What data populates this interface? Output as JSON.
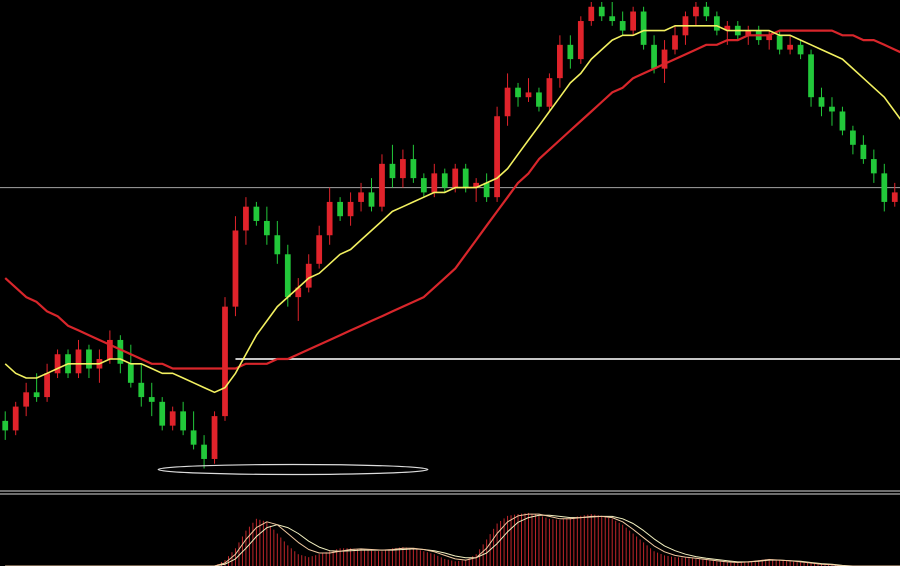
{
  "chart_data": {
    "type": "candlestick",
    "background": "#000000",
    "colors": {
      "up": "#e0232b",
      "down": "#22c83a",
      "ma_fast": "#f2f060",
      "ma_slow": "#d8262b",
      "level_line": "#dcdcdc",
      "histogram": "#c0262b",
      "osc_line_1": "#f0c8a0",
      "osc_line_2": "#f2f0c0",
      "highlight_ellipse": "#dcdcdc"
    },
    "price_range": [
      0,
      100
    ],
    "candles": [
      {
        "o": 12,
        "h": 14,
        "l": 8,
        "c": 10
      },
      {
        "o": 10,
        "h": 16,
        "l": 9,
        "c": 15
      },
      {
        "o": 15,
        "h": 20,
        "l": 13,
        "c": 18
      },
      {
        "o": 18,
        "h": 22,
        "l": 16,
        "c": 17
      },
      {
        "o": 17,
        "h": 24,
        "l": 16,
        "c": 22
      },
      {
        "o": 22,
        "h": 27,
        "l": 21,
        "c": 26
      },
      {
        "o": 26,
        "h": 27,
        "l": 21,
        "c": 22
      },
      {
        "o": 22,
        "h": 29,
        "l": 21,
        "c": 27
      },
      {
        "o": 27,
        "h": 28,
        "l": 21,
        "c": 23
      },
      {
        "o": 23,
        "h": 27,
        "l": 20,
        "c": 25
      },
      {
        "o": 25,
        "h": 31,
        "l": 24,
        "c": 29
      },
      {
        "o": 29,
        "h": 30,
        "l": 22,
        "c": 24
      },
      {
        "o": 24,
        "h": 28,
        "l": 19,
        "c": 20
      },
      {
        "o": 20,
        "h": 24,
        "l": 15,
        "c": 17
      },
      {
        "o": 17,
        "h": 20,
        "l": 13,
        "c": 16
      },
      {
        "o": 16,
        "h": 17,
        "l": 10,
        "c": 11
      },
      {
        "o": 11,
        "h": 15,
        "l": 10,
        "c": 14
      },
      {
        "o": 14,
        "h": 16,
        "l": 9,
        "c": 10
      },
      {
        "o": 10,
        "h": 14,
        "l": 6,
        "c": 7
      },
      {
        "o": 7,
        "h": 9,
        "l": 2,
        "c": 4
      },
      {
        "o": 4,
        "h": 14,
        "l": 3,
        "c": 13
      },
      {
        "o": 13,
        "h": 38,
        "l": 12,
        "c": 36
      },
      {
        "o": 36,
        "h": 55,
        "l": 34,
        "c": 52
      },
      {
        "o": 52,
        "h": 59,
        "l": 49,
        "c": 57
      },
      {
        "o": 57,
        "h": 58,
        "l": 53,
        "c": 54
      },
      {
        "o": 54,
        "h": 57,
        "l": 49,
        "c": 51
      },
      {
        "o": 51,
        "h": 54,
        "l": 45,
        "c": 47
      },
      {
        "o": 47,
        "h": 49,
        "l": 36,
        "c": 38
      },
      {
        "o": 38,
        "h": 42,
        "l": 33,
        "c": 40
      },
      {
        "o": 40,
        "h": 47,
        "l": 39,
        "c": 45
      },
      {
        "o": 45,
        "h": 53,
        "l": 44,
        "c": 51
      },
      {
        "o": 51,
        "h": 61,
        "l": 49,
        "c": 58
      },
      {
        "o": 58,
        "h": 59,
        "l": 54,
        "c": 55
      },
      {
        "o": 55,
        "h": 60,
        "l": 53,
        "c": 58
      },
      {
        "o": 58,
        "h": 62,
        "l": 56,
        "c": 60
      },
      {
        "o": 60,
        "h": 63,
        "l": 56,
        "c": 57
      },
      {
        "o": 57,
        "h": 68,
        "l": 56,
        "c": 66
      },
      {
        "o": 66,
        "h": 70,
        "l": 61,
        "c": 63
      },
      {
        "o": 63,
        "h": 69,
        "l": 61,
        "c": 67
      },
      {
        "o": 67,
        "h": 70,
        "l": 62,
        "c": 63
      },
      {
        "o": 63,
        "h": 64,
        "l": 59,
        "c": 60
      },
      {
        "o": 60,
        "h": 66,
        "l": 59,
        "c": 64
      },
      {
        "o": 64,
        "h": 65,
        "l": 60,
        "c": 61
      },
      {
        "o": 61,
        "h": 66,
        "l": 60,
        "c": 65
      },
      {
        "o": 65,
        "h": 66,
        "l": 60,
        "c": 61
      },
      {
        "o": 61,
        "h": 63,
        "l": 58,
        "c": 62
      },
      {
        "o": 62,
        "h": 64,
        "l": 58,
        "c": 59
      },
      {
        "o": 59,
        "h": 78,
        "l": 58,
        "c": 76
      },
      {
        "o": 76,
        "h": 85,
        "l": 74,
        "c": 82
      },
      {
        "o": 82,
        "h": 83,
        "l": 78,
        "c": 80
      },
      {
        "o": 80,
        "h": 84,
        "l": 79,
        "c": 81
      },
      {
        "o": 81,
        "h": 82,
        "l": 77,
        "c": 78
      },
      {
        "o": 78,
        "h": 85,
        "l": 77,
        "c": 84
      },
      {
        "o": 84,
        "h": 93,
        "l": 82,
        "c": 91
      },
      {
        "o": 91,
        "h": 93,
        "l": 86,
        "c": 88
      },
      {
        "o": 88,
        "h": 97,
        "l": 87,
        "c": 96
      },
      {
        "o": 96,
        "h": 100,
        "l": 95,
        "c": 99
      },
      {
        "o": 99,
        "h": 100,
        "l": 96,
        "c": 97
      },
      {
        "o": 97,
        "h": 100,
        "l": 95,
        "c": 96
      },
      {
        "o": 96,
        "h": 98,
        "l": 93,
        "c": 94
      },
      {
        "o": 94,
        "h": 99,
        "l": 93,
        "c": 98
      },
      {
        "o": 98,
        "h": 99,
        "l": 90,
        "c": 91
      },
      {
        "o": 91,
        "h": 93,
        "l": 85,
        "c": 86
      },
      {
        "o": 86,
        "h": 92,
        "l": 83,
        "c": 90
      },
      {
        "o": 90,
        "h": 95,
        "l": 89,
        "c": 93
      },
      {
        "o": 93,
        "h": 98,
        "l": 91,
        "c": 97
      },
      {
        "o": 97,
        "h": 100,
        "l": 95,
        "c": 99
      },
      {
        "o": 99,
        "h": 100,
        "l": 96,
        "c": 97
      },
      {
        "o": 97,
        "h": 98,
        "l": 93,
        "c": 94
      },
      {
        "o": 94,
        "h": 96,
        "l": 91,
        "c": 95
      },
      {
        "o": 95,
        "h": 96,
        "l": 92,
        "c": 93
      },
      {
        "o": 93,
        "h": 95,
        "l": 91,
        "c": 94
      },
      {
        "o": 94,
        "h": 95,
        "l": 91,
        "c": 92
      },
      {
        "o": 92,
        "h": 94,
        "l": 90,
        "c": 93
      },
      {
        "o": 93,
        "h": 94,
        "l": 89,
        "c": 90
      },
      {
        "o": 90,
        "h": 93,
        "l": 89,
        "c": 91
      },
      {
        "o": 91,
        "h": 92,
        "l": 88,
        "c": 89
      },
      {
        "o": 89,
        "h": 90,
        "l": 78,
        "c": 80
      },
      {
        "o": 80,
        "h": 82,
        "l": 76,
        "c": 78
      },
      {
        "o": 78,
        "h": 80,
        "l": 74,
        "c": 77
      },
      {
        "o": 77,
        "h": 78,
        "l": 72,
        "c": 73
      },
      {
        "o": 73,
        "h": 74,
        "l": 68,
        "c": 70
      },
      {
        "o": 70,
        "h": 72,
        "l": 66,
        "c": 67
      },
      {
        "o": 67,
        "h": 69,
        "l": 62,
        "c": 64
      },
      {
        "o": 64,
        "h": 66,
        "l": 56,
        "c": 58
      },
      {
        "o": 58,
        "h": 62,
        "l": 57,
        "c": 60
      }
    ],
    "ma_fast": [
      24,
      22,
      21,
      21,
      22,
      23,
      24,
      24,
      24,
      24,
      25,
      25,
      24,
      24,
      23,
      22,
      22,
      21,
      20,
      19,
      18,
      19,
      22,
      26,
      30,
      33,
      36,
      38,
      40,
      42,
      43,
      45,
      47,
      48,
      50,
      52,
      54,
      56,
      57,
      58,
      59,
      60,
      60,
      61,
      61,
      61,
      62,
      63,
      65,
      68,
      71,
      74,
      77,
      80,
      83,
      85,
      88,
      90,
      92,
      93,
      93,
      94,
      94,
      94,
      95,
      95,
      95,
      95,
      95,
      94,
      94,
      94,
      94,
      94,
      93,
      93,
      92,
      91,
      90,
      89,
      88,
      86,
      84,
      82,
      80,
      77,
      74
    ],
    "ma_slow": [
      42,
      40,
      38,
      37,
      35,
      34,
      32,
      31,
      30,
      29,
      28,
      27,
      26,
      25,
      24,
      24,
      23,
      23,
      23,
      23,
      23,
      23,
      23,
      24,
      24,
      24,
      25,
      25,
      26,
      27,
      28,
      29,
      30,
      31,
      32,
      33,
      34,
      35,
      36,
      37,
      38,
      40,
      42,
      44,
      47,
      50,
      53,
      56,
      59,
      62,
      64,
      67,
      69,
      71,
      73,
      75,
      77,
      79,
      81,
      82,
      84,
      85,
      86,
      87,
      88,
      89,
      90,
      91,
      91,
      92,
      92,
      93,
      93,
      93,
      94,
      94,
      94,
      94,
      94,
      94,
      93,
      93,
      92,
      92,
      91,
      90,
      89
    ],
    "levels": [
      {
        "price": 61,
        "extent": "full"
      },
      {
        "price": 25,
        "extent": "partial"
      }
    ],
    "oscillator": {
      "range": [
        0,
        100
      ],
      "histogram": [
        0,
        0,
        0,
        0,
        0,
        0,
        0,
        0,
        0,
        0,
        0,
        0,
        0,
        0,
        0,
        0,
        0,
        0,
        0,
        0,
        0,
        10,
        30,
        60,
        80,
        75,
        55,
        35,
        20,
        15,
        20,
        25,
        30,
        30,
        28,
        26,
        25,
        30,
        32,
        30,
        25,
        20,
        12,
        8,
        10,
        20,
        45,
        72,
        85,
        88,
        90,
        86,
        80,
        78,
        82,
        85,
        88,
        85,
        80,
        70,
        55,
        40,
        25,
        18,
        15,
        14,
        12,
        10,
        8,
        6,
        5,
        8,
        10,
        12,
        10,
        8,
        6,
        5,
        3,
        2,
        0,
        0,
        0,
        0,
        0,
        0,
        0
      ],
      "line_1": [
        0,
        0,
        0,
        0,
        0,
        0,
        0,
        0,
        0,
        0,
        0,
        0,
        0,
        0,
        0,
        0,
        0,
        0,
        0,
        0,
        0,
        5,
        20,
        45,
        65,
        75,
        70,
        55,
        40,
        28,
        22,
        22,
        25,
        28,
        29,
        28,
        27,
        28,
        30,
        30,
        28,
        24,
        18,
        12,
        10,
        14,
        30,
        55,
        75,
        85,
        88,
        88,
        84,
        80,
        80,
        82,
        84,
        84,
        82,
        75,
        62,
        48,
        34,
        24,
        18,
        15,
        13,
        11,
        9,
        7,
        6,
        7,
        9,
        11,
        10,
        9,
        7,
        5,
        3,
        2,
        0,
        0,
        0,
        0,
        0,
        0,
        0
      ],
      "line_2": [
        0,
        0,
        0,
        0,
        0,
        0,
        0,
        0,
        0,
        0,
        0,
        0,
        0,
        0,
        0,
        0,
        0,
        0,
        0,
        0,
        0,
        3,
        12,
        30,
        50,
        65,
        70,
        65,
        55,
        42,
        32,
        26,
        25,
        26,
        27,
        27,
        27,
        27,
        28,
        29,
        28,
        26,
        22,
        17,
        14,
        14,
        22,
        38,
        58,
        74,
        82,
        86,
        86,
        84,
        82,
        82,
        83,
        84,
        84,
        80,
        72,
        60,
        46,
        34,
        26,
        20,
        16,
        13,
        11,
        9,
        7,
        7,
        8,
        10,
        10,
        9,
        8,
        6,
        4,
        3,
        1,
        0,
        0,
        0,
        0,
        0,
        0
      ]
    },
    "annotations": [
      {
        "type": "ellipse",
        "around": "low",
        "candle_from": 15,
        "candle_to": 40
      }
    ]
  }
}
